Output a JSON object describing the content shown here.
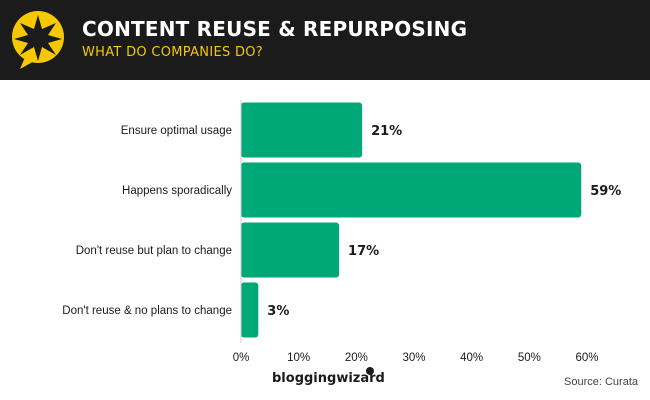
{
  "header": {
    "title": "CONTENT REUSE & REPURPOSING",
    "subtitle": "WHAT DO COMPANIES DO?"
  },
  "footer": {
    "brand": "bloggingwizard",
    "source": "Source: Curata"
  },
  "colors": {
    "header_bg": "#1b1b1b",
    "accent_yellow": "#f5c800",
    "bar": "#00a878",
    "text": "#1b1b1b"
  },
  "chart_data": {
    "type": "bar",
    "orientation": "horizontal",
    "categories": [
      "Ensure optimal usage",
      "Happens sporadically",
      "Don't reuse but plan to change",
      "Don't reuse & no plans to change"
    ],
    "values": [
      21,
      59,
      17,
      3
    ],
    "value_labels": [
      "21%",
      "59%",
      "17%",
      "3%"
    ],
    "xlim": [
      0,
      60
    ],
    "xticks": [
      0,
      10,
      20,
      30,
      40,
      50,
      60
    ],
    "xtick_labels": [
      "0%",
      "10%",
      "20%",
      "30%",
      "40%",
      "50%",
      "60%"
    ],
    "grid": false,
    "legend": "none"
  }
}
